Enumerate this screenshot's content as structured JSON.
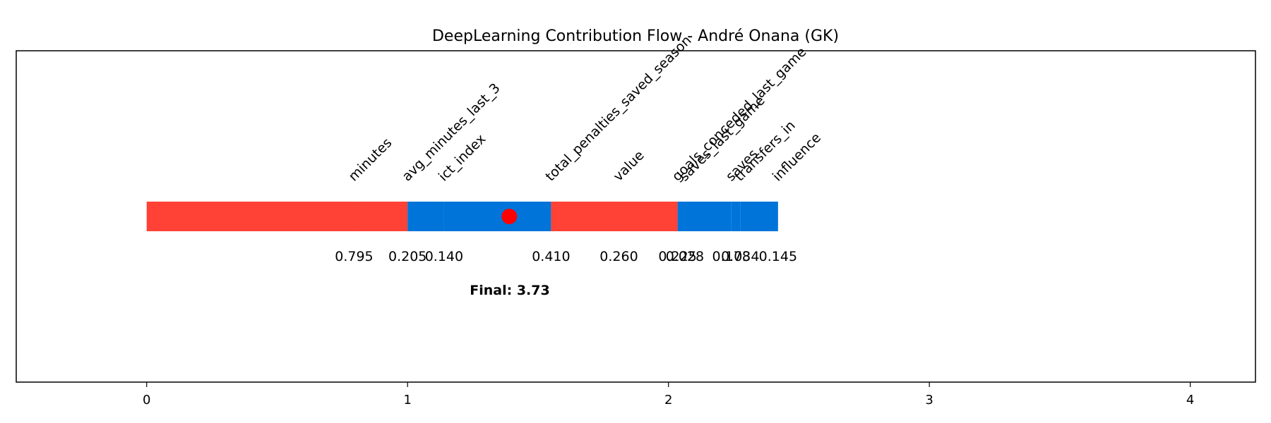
{
  "chart_data": {
    "type": "bar",
    "title": "DeepLearning Contribution Flow - André Onana (GK)",
    "xlabel": "",
    "ylabel": "",
    "xlim": [
      -0.5,
      4.25
    ],
    "xticks": [
      0,
      1,
      2,
      3,
      4
    ],
    "grid": false,
    "segments": [
      {
        "feature": "minutes",
        "value": 0.795,
        "direction": "negative",
        "color": "#ff4136"
      },
      {
        "feature": "avg_minutes_last_3",
        "value": 0.205,
        "direction": "negative",
        "color": "#ff4136"
      },
      {
        "feature": "ict_index",
        "value": 0.14,
        "direction": "positive",
        "color": "#0074d9"
      },
      {
        "feature": "total_penalties_saved_season",
        "value": 0.41,
        "direction": "positive",
        "color": "#0074d9"
      },
      {
        "feature": "value",
        "value": 0.26,
        "direction": "negative",
        "color": "#ff4136"
      },
      {
        "feature": "goals_conceded_last_game",
        "value": 0.225,
        "direction": "negative",
        "color": "#ff4136"
      },
      {
        "feature": "saves_last_game",
        "value": 0.028,
        "direction": "positive",
        "color": "#0074d9"
      },
      {
        "feature": "saves",
        "value": 0.178,
        "direction": "positive",
        "color": "#0074d9"
      },
      {
        "feature": "transfers_in",
        "value": 0.034,
        "direction": "positive",
        "color": "#0074d9"
      },
      {
        "feature": "influence",
        "value": 0.145,
        "direction": "positive",
        "color": "#0074d9"
      }
    ],
    "segment_value_labels": [
      "0.795",
      "0.205",
      "0.140",
      "0.410",
      "0.260",
      "0.225",
      "0.028",
      "0.178",
      "0.034",
      "0.145"
    ],
    "final_marker": {
      "x": 1.39,
      "color": "#ff0000"
    },
    "final_label": "Final: 3.73",
    "colors": {
      "positive": "#0074d9",
      "negative": "#ff4136",
      "marker": "#ff0000"
    }
  }
}
